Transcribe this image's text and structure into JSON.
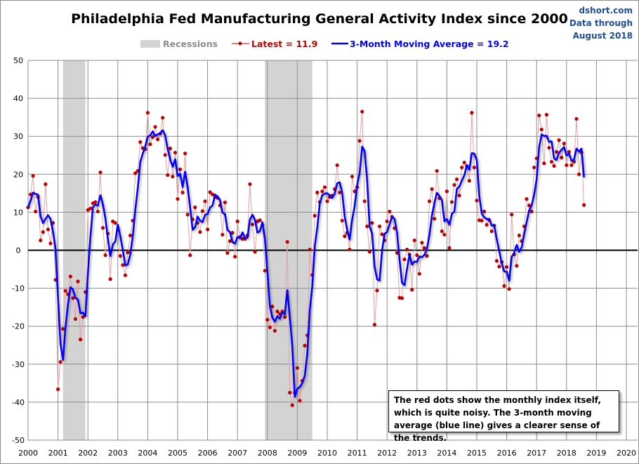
{
  "title": "Philadelphia Fed Manufacturing General Activity Index since 2000",
  "source": {
    "line1": "dshort.com",
    "line2": "Data through",
    "line3": "August 2018"
  },
  "legend": {
    "recessions": "Recessions",
    "latest": "Latest = 11.9",
    "ma": "3-Month Moving Average = 19.2"
  },
  "note": "The red dots show the monthly  index itself, which is quite noisy. The 3-month moving average (blue line) gives a clearer sense of the trends.",
  "colors": {
    "dots": "#c00000",
    "dot_line": "#e8a0a0",
    "ma": "#0000ff",
    "recession": "#d3d3d3",
    "grid": "#8c8c8c",
    "zero": "#000000"
  },
  "chart_data": {
    "type": "line",
    "title": "Philadelphia Fed Manufacturing General Activity Index since 2000",
    "x_start": "2000-01",
    "x_frequency": "monthly",
    "xlim": [
      2000,
      2020
    ],
    "ylim": [
      -50,
      50
    ],
    "grid": true,
    "legend_placement": "top",
    "x_ticks": [
      "2000",
      "2001",
      "2002",
      "2003",
      "2004",
      "2005",
      "2006",
      "2007",
      "2008",
      "2009",
      "2010",
      "2011",
      "2012",
      "2013",
      "2014",
      "2015",
      "2016",
      "2017",
      "2018",
      "2019",
      "2020"
    ],
    "y_ticks": [
      "50",
      "40",
      "30",
      "20",
      "10",
      "0",
      "-10",
      "-20",
      "-30",
      "-40",
      "-50"
    ],
    "recessions": [
      {
        "start": "2001-03",
        "end": "2001-11"
      },
      {
        "start": "2007-12",
        "end": "2009-06"
      }
    ],
    "series": [
      {
        "name": "Latest = 11.9",
        "style": "red dots with thin line",
        "values": [
          11.3,
          14.7,
          19.6,
          10.2,
          14.0,
          2.6,
          4.8,
          17.4,
          5.5,
          1.8,
          7.2,
          -7.8,
          -36.6,
          -29.4,
          -20.7,
          -10.7,
          -11.6,
          -6.9,
          -12.6,
          -18.1,
          -8.2,
          -23.5,
          -17.6,
          -11.0,
          10.6,
          11.0,
          12.4,
          12.7,
          10.2,
          20.5,
          5.9,
          -1.3,
          4.4,
          -7.6,
          7.6,
          7.2,
          5.4,
          -1.5,
          -3.9,
          -6.6,
          -0.6,
          3.9,
          7.8,
          20.3,
          20.9,
          28.5,
          26.9,
          26.6,
          36.2,
          27.9,
          29.8,
          32.5,
          29.2,
          30.7,
          34.9,
          25.1,
          19.8,
          26.8,
          19.4,
          25.7,
          13.5,
          21.3,
          15.2,
          25.5,
          9.4,
          -1.3,
          8.1,
          11.3,
          7.2,
          4.8,
          10.3,
          12.9,
          5.5,
          15.3,
          14.7,
          14.0,
          13.8,
          11.8,
          4.1,
          12.6,
          -0.7,
          2.4,
          4.6,
          -1.7,
          7.6,
          3.5,
          3.0,
          3.0,
          3.9,
          17.4,
          6.8,
          -0.4,
          7.6,
          7.9,
          6.7,
          -5.4,
          -18.3,
          -20.3,
          -14.8,
          -21.2,
          -16.1,
          -16.8,
          -16.1,
          -17.6,
          2.2,
          -37.5,
          -40.8,
          -37.5,
          -31.0,
          -39.6,
          -34.4,
          -25.1,
          -22.4,
          0.2,
          -6.5,
          9.1,
          15.2,
          12.7,
          15.5,
          16.6,
          12.9,
          14.0,
          14.4,
          16.1,
          22.4,
          15.2,
          7.8,
          3.7,
          4.6,
          0.2,
          19.4,
          15.5,
          16.6,
          28.8,
          36.5,
          12.9,
          6.3,
          -0.4,
          7.2,
          -19.6,
          -10.6,
          6.3,
          4.2,
          2.6,
          7.6,
          10.2,
          8.8,
          5.8,
          -0.7,
          -12.5,
          -12.6,
          -2.4,
          0.2,
          -1.1,
          -10.4,
          2.6,
          -1.3,
          -6.2,
          2.0,
          0.6,
          -1.5,
          12.9,
          16.1,
          8.3,
          20.9,
          13.7,
          5.0,
          4.1,
          15.5,
          0.6,
          12.7,
          17.2,
          18.7,
          14.4,
          21.8,
          23.1,
          22.2,
          18.3,
          36.2,
          21.8,
          13.1,
          7.9,
          7.8,
          10.2,
          6.7,
          7.9,
          5.0,
          6.5,
          -2.8,
          -4.3,
          -3.1,
          -9.4,
          -4.4,
          -10.2,
          9.4,
          -1.1,
          -4.1,
          3.9,
          2.4,
          6.3,
          13.5,
          11.8,
          10.2,
          21.8,
          24.2,
          35.5,
          31.8,
          22.9,
          35.7,
          27.0,
          23.3,
          22.2,
          25.9,
          29.0,
          24.4,
          28.1,
          22.4,
          25.9,
          22.4,
          23.3,
          34.6,
          20.0,
          25.7,
          11.9
        ]
      },
      {
        "name": "3-Month Moving Average = 19.2",
        "style": "blue line",
        "moving_average_of": "Latest = 11.9",
        "window": 3
      }
    ]
  }
}
